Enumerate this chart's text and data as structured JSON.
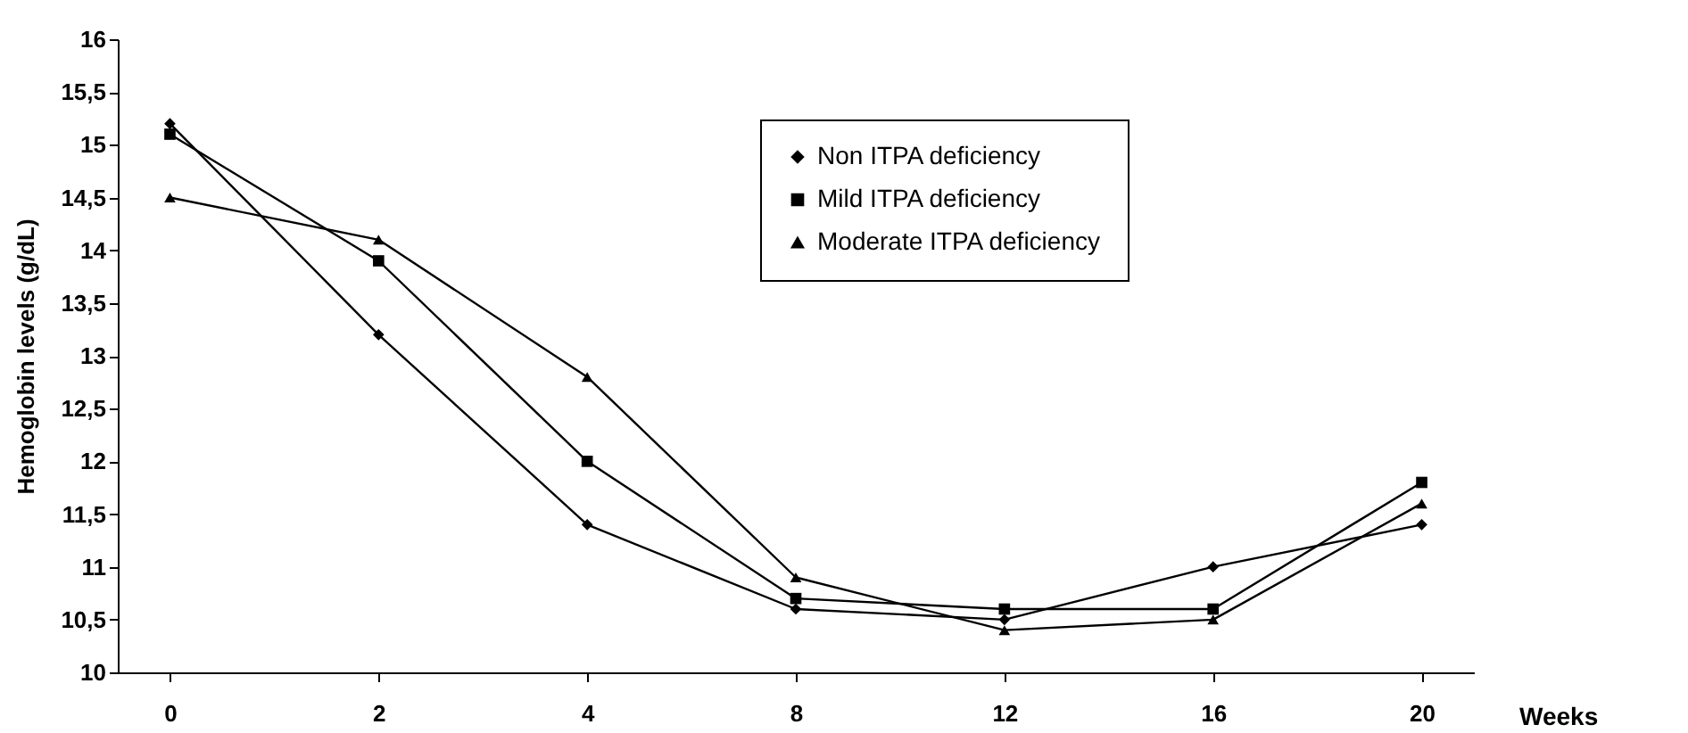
{
  "chart_data": {
    "type": "line",
    "xlabel": "Weeks",
    "ylabel": "Hemoglobin levels (g/dL)",
    "categories": [
      "0",
      "2",
      "4",
      "8",
      "12",
      "16",
      "20"
    ],
    "series": [
      {
        "name": "Non ITPA deficiency",
        "color": "#000000",
        "marker": "diamond",
        "values": [
          15.2,
          13.2,
          11.4,
          10.6,
          10.5,
          11.0,
          11.4
        ]
      },
      {
        "name": "Mild ITPA deficiency",
        "color": "#000000",
        "marker": "square",
        "values": [
          15.1,
          13.9,
          12.0,
          10.7,
          10.6,
          10.6,
          11.8
        ]
      },
      {
        "name": "Moderate ITPA deficiency",
        "color": "#000000",
        "marker": "triangle",
        "values": [
          14.5,
          14.1,
          12.8,
          10.9,
          10.4,
          10.5,
          11.6
        ]
      }
    ],
    "ylim": [
      10,
      16
    ],
    "yticks": [
      10,
      {
        "value": 10.5,
        "label": "10,5"
      },
      11,
      {
        "value": 11.5,
        "label": "11,5"
      },
      12,
      {
        "value": 12.5,
        "label": "12,5"
      },
      13,
      {
        "value": 13.5,
        "label": "13,5"
      },
      14,
      {
        "value": 14.5,
        "label": "14,5"
      },
      15,
      {
        "value": 15.5,
        "label": "15,5"
      },
      16
    ],
    "grid": false,
    "legend": "top right",
    "line_style": "solid"
  }
}
